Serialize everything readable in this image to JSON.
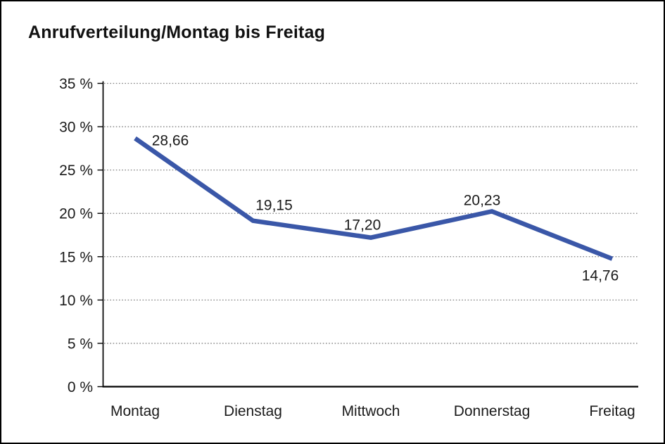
{
  "chart_data": {
    "type": "line",
    "title": "Anrufverteilung/Montag bis Freitag",
    "categories": [
      "Montag",
      "Dienstag",
      "Mittwoch",
      "Donnerstag",
      "Freitag"
    ],
    "values": [
      28.66,
      19.15,
      17.2,
      20.23,
      14.76
    ],
    "value_labels": [
      "28,66",
      "19,15",
      "17,20",
      "20,23",
      "14,76"
    ],
    "ytick_labels": [
      "0 %",
      "5 %",
      "10 %",
      "15 %",
      "20 %",
      "25 %",
      "30 %",
      "35 %"
    ],
    "ylim": [
      0,
      35
    ],
    "ytick_step": 5,
    "xlabel": "",
    "ylabel": "",
    "legend": "none",
    "grid": "horizontal-dotted",
    "colors": {
      "line": "#3A57A8",
      "grid": "#7f7f7f",
      "axis": "#000000",
      "text": "#1a1a1a",
      "background": "#ffffff",
      "frame_border": "#000000"
    }
  }
}
